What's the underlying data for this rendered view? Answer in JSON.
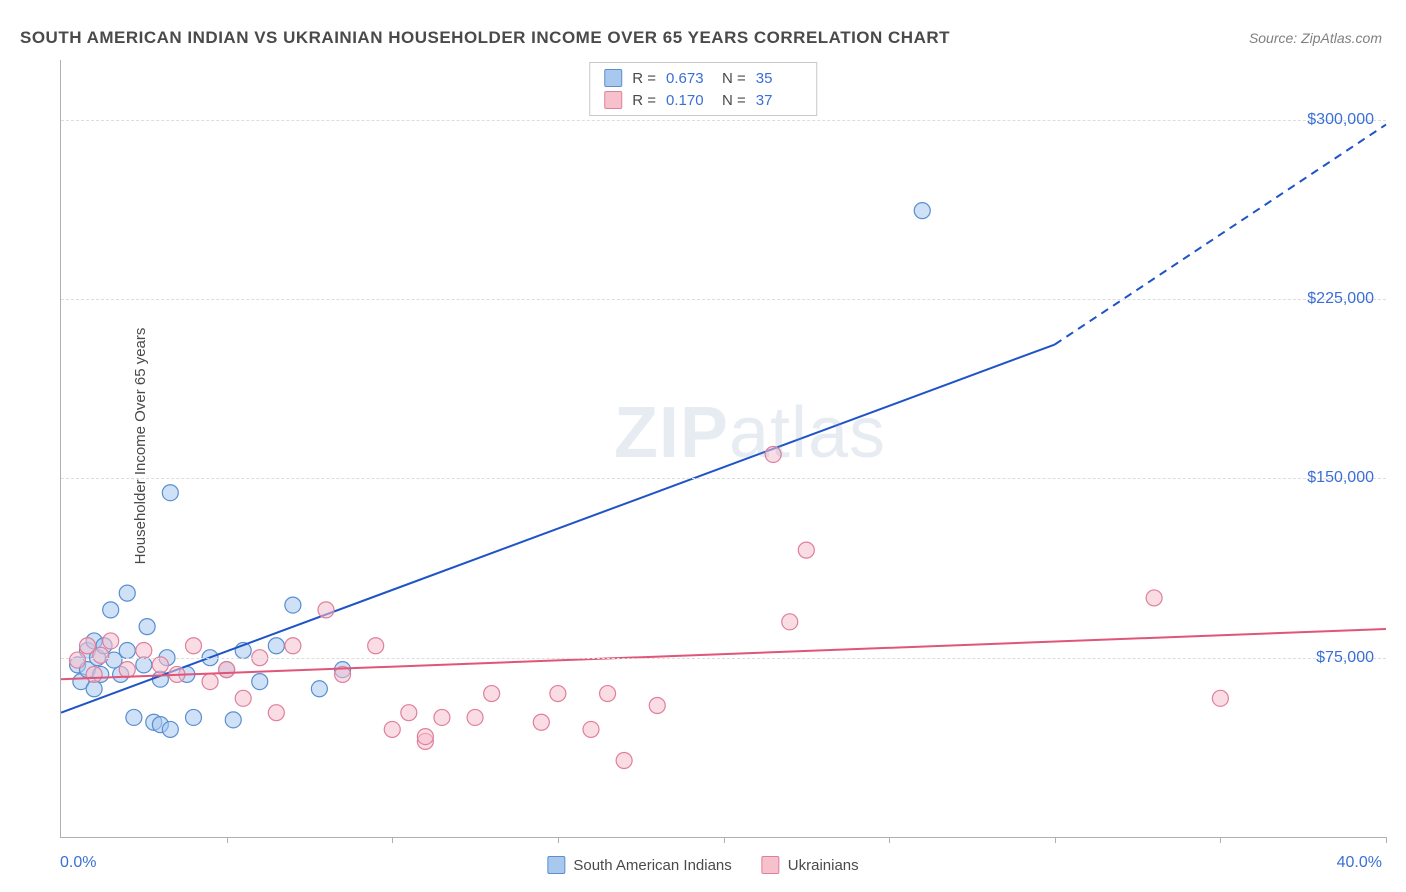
{
  "title": "SOUTH AMERICAN INDIAN VS UKRAINIAN HOUSEHOLDER INCOME OVER 65 YEARS CORRELATION CHART",
  "source": "Source: ZipAtlas.com",
  "ylabel": "Householder Income Over 65 years",
  "watermark_bold": "ZIP",
  "watermark_rest": "atlas",
  "chart": {
    "type": "scatter-with-regression",
    "background_color": "#ffffff",
    "grid_color": "#dddddd",
    "axis_color": "#b0b0b0",
    "xlim": [
      0,
      40
    ],
    "ylim": [
      0,
      325000
    ],
    "y_ticks": [
      75000,
      150000,
      225000,
      300000
    ],
    "y_tick_labels": [
      "$75,000",
      "$150,000",
      "$225,000",
      "$300,000"
    ],
    "x_tick_positions": [
      5,
      10,
      15,
      20,
      25,
      30,
      35,
      40
    ],
    "x_min_label": "0.0%",
    "x_max_label": "40.0%",
    "marker_radius": 8,
    "marker_stroke_width": 1.2,
    "line_width": 2
  },
  "series": [
    {
      "name": "South American Indians",
      "fill": "#a8c8ee",
      "stroke": "#5a8ed0",
      "line_color": "#1e54c7",
      "r_value": "0.673",
      "n_value": "35",
      "regression": {
        "x1": 0,
        "y1": 52000,
        "x2": 30,
        "y2": 206000,
        "dash_from_x": 30,
        "dash_to_x": 40,
        "dash_to_y": 298000
      },
      "points": [
        [
          0.5,
          72000
        ],
        [
          0.6,
          65000
        ],
        [
          0.8,
          78000
        ],
        [
          0.8,
          70000
        ],
        [
          1.0,
          82000
        ],
        [
          1.0,
          62000
        ],
        [
          1.1,
          75000
        ],
        [
          1.2,
          68000
        ],
        [
          1.3,
          80000
        ],
        [
          1.5,
          95000
        ],
        [
          1.6,
          74000
        ],
        [
          1.8,
          68000
        ],
        [
          2.0,
          102000
        ],
        [
          2.0,
          78000
        ],
        [
          2.2,
          50000
        ],
        [
          2.5,
          72000
        ],
        [
          2.6,
          88000
        ],
        [
          2.8,
          48000
        ],
        [
          3.0,
          66000
        ],
        [
          3.0,
          47000
        ],
        [
          3.2,
          75000
        ],
        [
          3.3,
          45000
        ],
        [
          3.3,
          144000
        ],
        [
          3.8,
          68000
        ],
        [
          4.0,
          50000
        ],
        [
          4.5,
          75000
        ],
        [
          5.0,
          70000
        ],
        [
          5.2,
          49000
        ],
        [
          5.5,
          78000
        ],
        [
          6.0,
          65000
        ],
        [
          6.5,
          80000
        ],
        [
          7.0,
          97000
        ],
        [
          7.8,
          62000
        ],
        [
          8.5,
          70000
        ],
        [
          26.0,
          262000
        ]
      ]
    },
    {
      "name": "Ukrainians",
      "fill": "#f6c0cd",
      "stroke": "#e07f9b",
      "line_color": "#e05578",
      "r_value": "0.170",
      "n_value": "37",
      "regression": {
        "x1": 0,
        "y1": 66000,
        "x2": 40,
        "y2": 87000
      },
      "points": [
        [
          0.5,
          74000
        ],
        [
          0.8,
          80000
        ],
        [
          1.0,
          68000
        ],
        [
          1.2,
          76000
        ],
        [
          1.5,
          82000
        ],
        [
          2.0,
          70000
        ],
        [
          2.5,
          78000
        ],
        [
          3.0,
          72000
        ],
        [
          3.5,
          68000
        ],
        [
          4.0,
          80000
        ],
        [
          4.5,
          65000
        ],
        [
          5.0,
          70000
        ],
        [
          5.5,
          58000
        ],
        [
          6.0,
          75000
        ],
        [
          6.5,
          52000
        ],
        [
          7.0,
          80000
        ],
        [
          8.0,
          95000
        ],
        [
          8.5,
          68000
        ],
        [
          9.5,
          80000
        ],
        [
          10.0,
          45000
        ],
        [
          10.5,
          52000
        ],
        [
          11.0,
          40000
        ],
        [
          11.0,
          42000
        ],
        [
          11.5,
          50000
        ],
        [
          12.5,
          50000
        ],
        [
          13.0,
          60000
        ],
        [
          14.5,
          48000
        ],
        [
          15.0,
          60000
        ],
        [
          16.0,
          45000
        ],
        [
          16.5,
          60000
        ],
        [
          17.0,
          32000
        ],
        [
          18.0,
          55000
        ],
        [
          21.5,
          160000
        ],
        [
          22.0,
          90000
        ],
        [
          22.5,
          120000
        ],
        [
          33.0,
          100000
        ],
        [
          35.0,
          58000
        ]
      ]
    }
  ],
  "top_legend": {
    "r_label": "R =",
    "n_label": "N ="
  },
  "bottom_legend": {
    "items": [
      "South American Indians",
      "Ukrainians"
    ]
  }
}
